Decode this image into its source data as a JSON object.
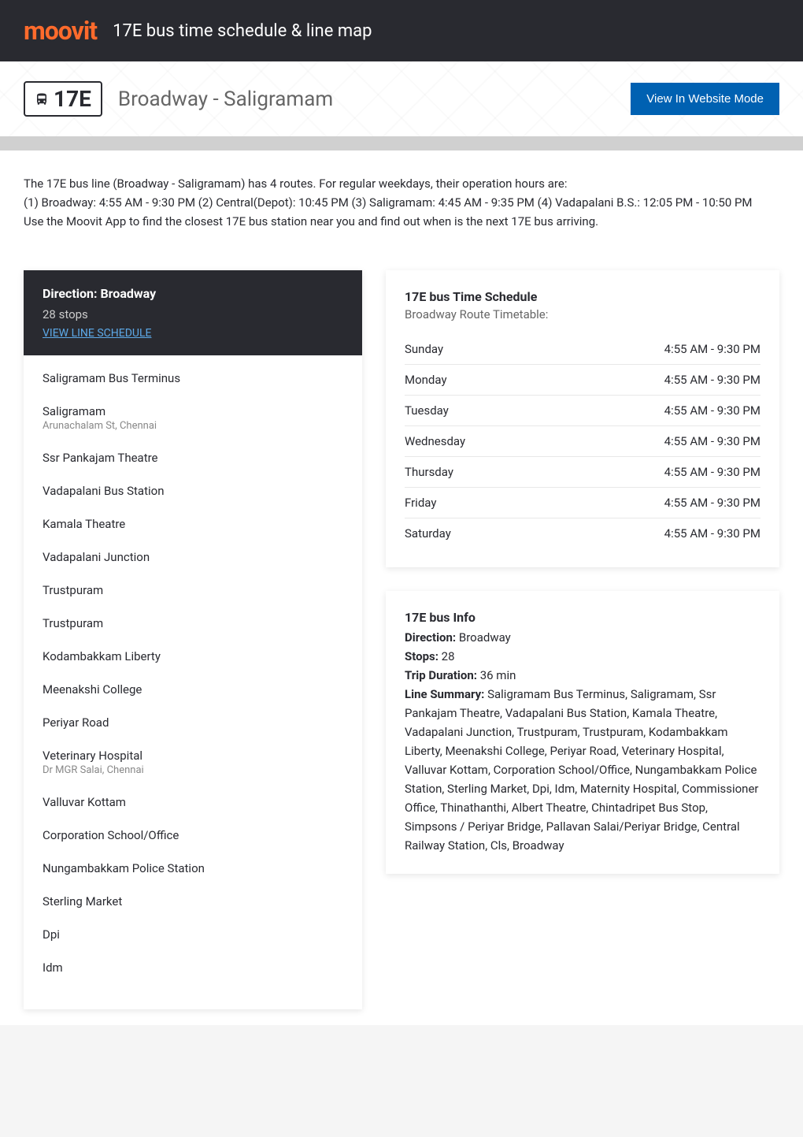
{
  "header": {
    "logo": "moovit",
    "title": "17E bus time schedule & line map"
  },
  "route": {
    "number": "17E",
    "name": "Broadway - Saligramam",
    "website_btn": "View In Website Mode"
  },
  "description": {
    "line1": "The 17E bus line (Broadway - Saligramam) has 4 routes. For regular weekdays, their operation hours are:",
    "line2": "(1) Broadway: 4:55 AM - 9:30 PM (2) Central(Depot): 10:45 PM (3) Saligramam: 4:45 AM - 9:35 PM (4) Vadapalani B.S.: 12:05 PM - 10:50 PM",
    "line3": "Use the Moovit App to find the closest 17E bus station near you and find out when is the next 17E bus arriving."
  },
  "direction": {
    "title": "Direction: Broadway",
    "stops_count": "28 stops",
    "schedule_link": "VIEW LINE SCHEDULE"
  },
  "stops": [
    {
      "name": "Saligramam Bus Terminus",
      "detail": ""
    },
    {
      "name": "Saligramam",
      "detail": "Arunachalam St, Chennai"
    },
    {
      "name": "Ssr Pankajam Theatre",
      "detail": ""
    },
    {
      "name": "Vadapalani Bus Station",
      "detail": ""
    },
    {
      "name": "Kamala Theatre",
      "detail": ""
    },
    {
      "name": "Vadapalani Junction",
      "detail": ""
    },
    {
      "name": "Trustpuram",
      "detail": ""
    },
    {
      "name": "Trustpuram",
      "detail": ""
    },
    {
      "name": "Kodambakkam Liberty",
      "detail": ""
    },
    {
      "name": "Meenakshi College",
      "detail": ""
    },
    {
      "name": "Periyar Road",
      "detail": ""
    },
    {
      "name": "Veterinary Hospital",
      "detail": "Dr MGR Salai, Chennai"
    },
    {
      "name": "Valluvar Kottam",
      "detail": ""
    },
    {
      "name": "Corporation School/Office",
      "detail": ""
    },
    {
      "name": "Nungambakkam Police Station",
      "detail": ""
    },
    {
      "name": "Sterling Market",
      "detail": ""
    },
    {
      "name": "Dpi",
      "detail": ""
    },
    {
      "name": "Idm",
      "detail": ""
    }
  ],
  "schedule": {
    "title": "17E bus Time Schedule",
    "subtitle": "Broadway Route Timetable:",
    "rows": [
      {
        "day": "Sunday",
        "time": "4:55 AM - 9:30 PM"
      },
      {
        "day": "Monday",
        "time": "4:55 AM - 9:30 PM"
      },
      {
        "day": "Tuesday",
        "time": "4:55 AM - 9:30 PM"
      },
      {
        "day": "Wednesday",
        "time": "4:55 AM - 9:30 PM"
      },
      {
        "day": "Thursday",
        "time": "4:55 AM - 9:30 PM"
      },
      {
        "day": "Friday",
        "time": "4:55 AM - 9:30 PM"
      },
      {
        "day": "Saturday",
        "time": "4:55 AM - 9:30 PM"
      }
    ]
  },
  "info": {
    "title": "17E bus Info",
    "direction_label": "Direction:",
    "direction_value": " Broadway",
    "stops_label": "Stops:",
    "stops_value": " 28",
    "duration_label": "Trip Duration:",
    "duration_value": " 36 min",
    "summary_label": "Line Summary:",
    "summary_value": " Saligramam Bus Terminus, Saligramam, Ssr Pankajam Theatre, Vadapalani Bus Station, Kamala Theatre, Vadapalani Junction, Trustpuram, Trustpuram, Kodambakkam Liberty, Meenakshi College, Periyar Road, Veterinary Hospital, Valluvar Kottam, Corporation School/Office, Nungambakkam Police Station, Sterling Market, Dpi, Idm, Maternity Hospital, Commissioner Office, Thinathanthi, Albert Theatre, Chintadripet Bus Stop, Simpsons / Periyar Bridge, Pallavan Salai/Periyar Bridge, Central Railway Station, Cls, Broadway"
  },
  "colors": {
    "header_bg": "#292a30",
    "logo_color": "#ff6b2c",
    "btn_bg": "#0061b2",
    "link_color": "#5da9e8",
    "text_primary": "#292a30",
    "text_secondary": "#666666",
    "text_muted": "#888888",
    "border_color": "#e8e8e8"
  }
}
